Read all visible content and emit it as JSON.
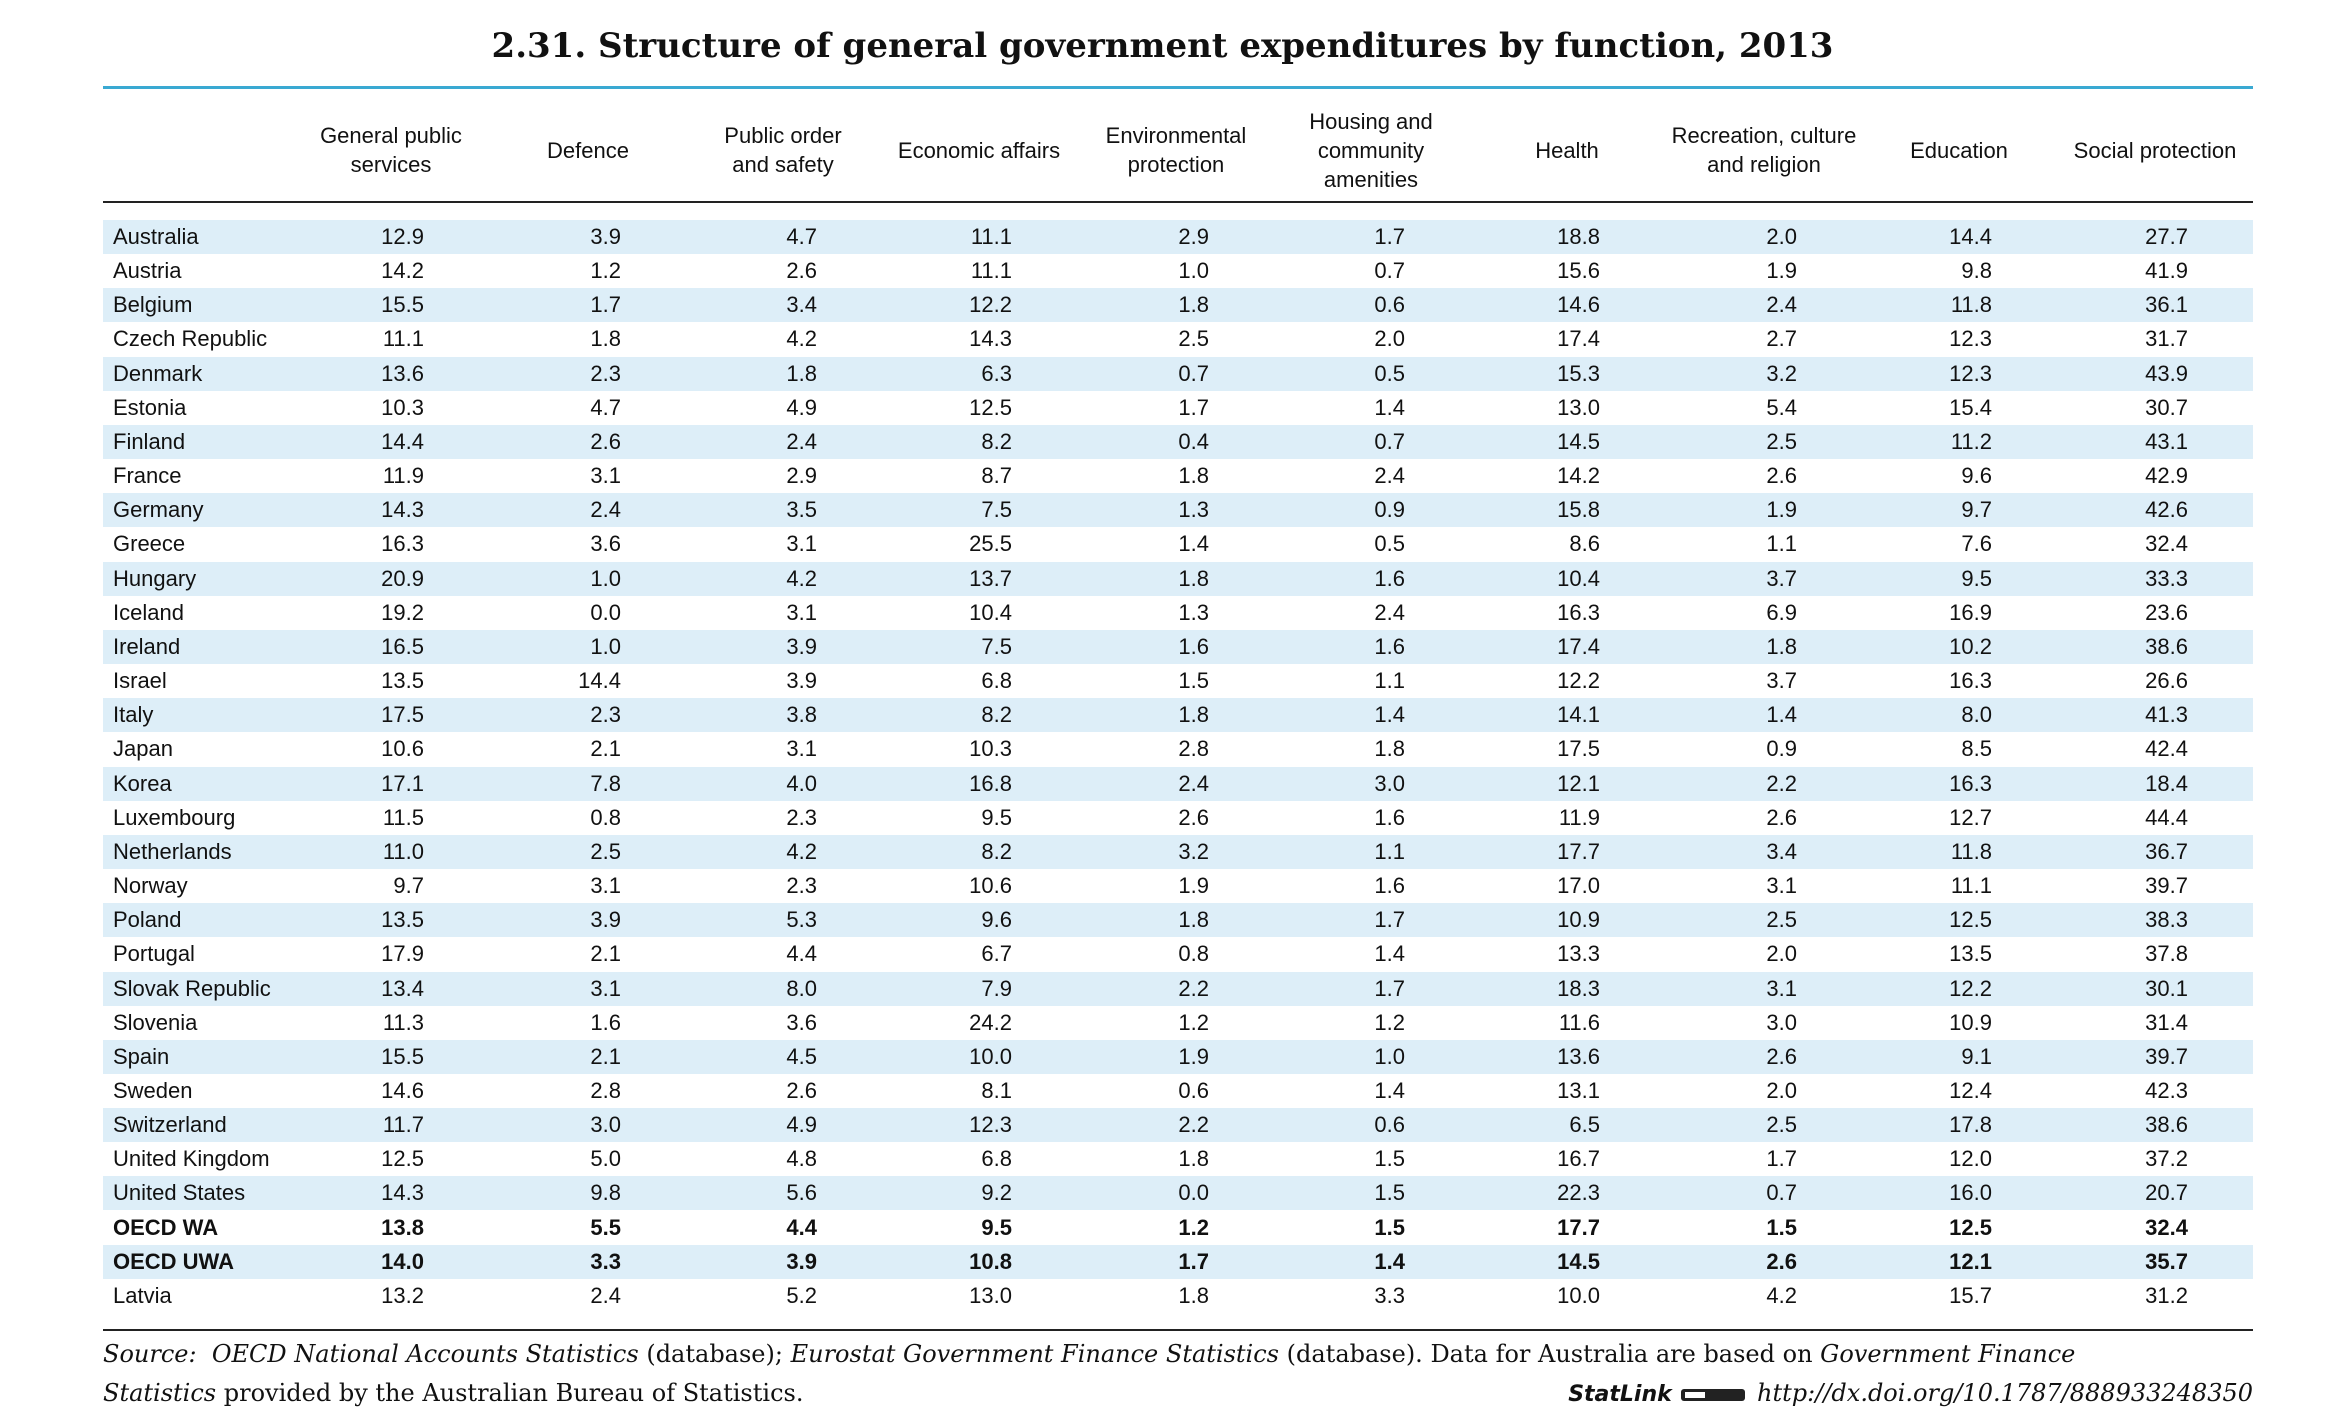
{
  "header": {
    "title": "2.31.  Structure of general government expenditures by function, 2013"
  },
  "table": {
    "columns": [
      "General public\nservices",
      "Defence",
      "Public order\nand safety",
      "Economic affairs",
      "Environmental\nprotection",
      "Housing and\ncommunity\namenities",
      "Health",
      "Recreation, culture\nand religion",
      "Education",
      "Social protection"
    ],
    "rows": [
      [
        "Australia",
        "12.9",
        "3.9",
        "4.7",
        "11.1",
        "2.9",
        "1.7",
        "18.8",
        "2.0",
        "14.4",
        "27.7"
      ],
      [
        "Austria",
        "14.2",
        "1.2",
        "2.6",
        "11.1",
        "1.0",
        "0.7",
        "15.6",
        "1.9",
        "9.8",
        "41.9"
      ],
      [
        "Belgium",
        "15.5",
        "1.7",
        "3.4",
        "12.2",
        "1.8",
        "0.6",
        "14.6",
        "2.4",
        "11.8",
        "36.1"
      ],
      [
        "Czech Republic",
        "11.1",
        "1.8",
        "4.2",
        "14.3",
        "2.5",
        "2.0",
        "17.4",
        "2.7",
        "12.3",
        "31.7"
      ],
      [
        "Denmark",
        "13.6",
        "2.3",
        "1.8",
        "6.3",
        "0.7",
        "0.5",
        "15.3",
        "3.2",
        "12.3",
        "43.9"
      ],
      [
        "Estonia",
        "10.3",
        "4.7",
        "4.9",
        "12.5",
        "1.7",
        "1.4",
        "13.0",
        "5.4",
        "15.4",
        "30.7"
      ],
      [
        "Finland",
        "14.4",
        "2.6",
        "2.4",
        "8.2",
        "0.4",
        "0.7",
        "14.5",
        "2.5",
        "11.2",
        "43.1"
      ],
      [
        "France",
        "11.9",
        "3.1",
        "2.9",
        "8.7",
        "1.8",
        "2.4",
        "14.2",
        "2.6",
        "9.6",
        "42.9"
      ],
      [
        "Germany",
        "14.3",
        "2.4",
        "3.5",
        "7.5",
        "1.3",
        "0.9",
        "15.8",
        "1.9",
        "9.7",
        "42.6"
      ],
      [
        "Greece",
        "16.3",
        "3.6",
        "3.1",
        "25.5",
        "1.4",
        "0.5",
        "8.6",
        "1.1",
        "7.6",
        "32.4"
      ],
      [
        "Hungary",
        "20.9",
        "1.0",
        "4.2",
        "13.7",
        "1.8",
        "1.6",
        "10.4",
        "3.7",
        "9.5",
        "33.3"
      ],
      [
        "Iceland",
        "19.2",
        "0.0",
        "3.1",
        "10.4",
        "1.3",
        "2.4",
        "16.3",
        "6.9",
        "16.9",
        "23.6"
      ],
      [
        "Ireland",
        "16.5",
        "1.0",
        "3.9",
        "7.5",
        "1.6",
        "1.6",
        "17.4",
        "1.8",
        "10.2",
        "38.6"
      ],
      [
        "Israel",
        "13.5",
        "14.4",
        "3.9",
        "6.8",
        "1.5",
        "1.1",
        "12.2",
        "3.7",
        "16.3",
        "26.6"
      ],
      [
        "Italy",
        "17.5",
        "2.3",
        "3.8",
        "8.2",
        "1.8",
        "1.4",
        "14.1",
        "1.4",
        "8.0",
        "41.3"
      ],
      [
        "Japan",
        "10.6",
        "2.1",
        "3.1",
        "10.3",
        "2.8",
        "1.8",
        "17.5",
        "0.9",
        "8.5",
        "42.4"
      ],
      [
        "Korea",
        "17.1",
        "7.8",
        "4.0",
        "16.8",
        "2.4",
        "3.0",
        "12.1",
        "2.2",
        "16.3",
        "18.4"
      ],
      [
        "Luxembourg",
        "11.5",
        "0.8",
        "2.3",
        "9.5",
        "2.6",
        "1.6",
        "11.9",
        "2.6",
        "12.7",
        "44.4"
      ],
      [
        "Netherlands",
        "11.0",
        "2.5",
        "4.2",
        "8.2",
        "3.2",
        "1.1",
        "17.7",
        "3.4",
        "11.8",
        "36.7"
      ],
      [
        "Norway",
        "9.7",
        "3.1",
        "2.3",
        "10.6",
        "1.9",
        "1.6",
        "17.0",
        "3.1",
        "11.1",
        "39.7"
      ],
      [
        "Poland",
        "13.5",
        "3.9",
        "5.3",
        "9.6",
        "1.8",
        "1.7",
        "10.9",
        "2.5",
        "12.5",
        "38.3"
      ],
      [
        "Portugal",
        "17.9",
        "2.1",
        "4.4",
        "6.7",
        "0.8",
        "1.4",
        "13.3",
        "2.0",
        "13.5",
        "37.8"
      ],
      [
        "Slovak Republic",
        "13.4",
        "3.1",
        "8.0",
        "7.9",
        "2.2",
        "1.7",
        "18.3",
        "3.1",
        "12.2",
        "30.1"
      ],
      [
        "Slovenia",
        "11.3",
        "1.6",
        "3.6",
        "24.2",
        "1.2",
        "1.2",
        "11.6",
        "3.0",
        "10.9",
        "31.4"
      ],
      [
        "Spain",
        "15.5",
        "2.1",
        "4.5",
        "10.0",
        "1.9",
        "1.0",
        "13.6",
        "2.6",
        "9.1",
        "39.7"
      ],
      [
        "Sweden",
        "14.6",
        "2.8",
        "2.6",
        "8.1",
        "0.6",
        "1.4",
        "13.1",
        "2.0",
        "12.4",
        "42.3"
      ],
      [
        "Switzerland",
        "11.7",
        "3.0",
        "4.9",
        "12.3",
        "2.2",
        "0.6",
        "6.5",
        "2.5",
        "17.8",
        "38.6"
      ],
      [
        "United Kingdom",
        "12.5",
        "5.0",
        "4.8",
        "6.8",
        "1.8",
        "1.5",
        "16.7",
        "1.7",
        "12.0",
        "37.2"
      ],
      [
        "United States",
        "14.3",
        "9.8",
        "5.6",
        "9.2",
        "0.0",
        "1.5",
        "22.3",
        "0.7",
        "16.0",
        "20.7"
      ],
      [
        "OECD WA",
        "13.8",
        "5.5",
        "4.4",
        "9.5",
        "1.2",
        "1.5",
        "17.7",
        "1.5",
        "12.5",
        "32.4"
      ],
      [
        "OECD UWA",
        "14.0",
        "3.3",
        "3.9",
        "10.8",
        "1.7",
        "1.4",
        "14.5",
        "2.6",
        "12.1",
        "35.7"
      ],
      [
        "Latvia",
        "13.2",
        "2.4",
        "5.2",
        "13.0",
        "1.8",
        "3.3",
        "10.0",
        "4.2",
        "15.7",
        "31.2"
      ]
    ]
  },
  "footer": {
    "source": [
      "Source:",
      "OECD National Accounts Statistics",
      "(database);",
      "Eurostat Government Finance Statistics",
      "(database). Data for Australia are based on",
      "Government Finance",
      "Statistics",
      "provided by the Australian Bureau of Statistics."
    ],
    "statlink": "StatLink",
    "url": "http://dx.doi.org/10.1787/888933248350"
  }
}
